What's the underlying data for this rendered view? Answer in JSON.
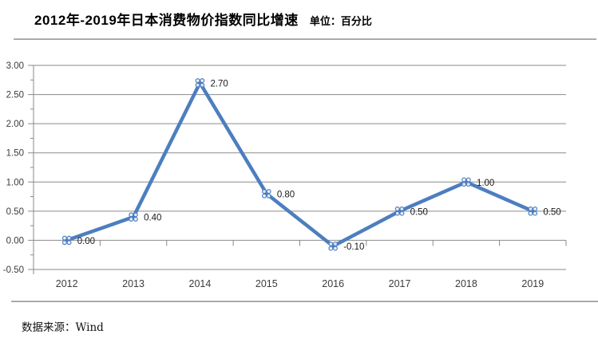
{
  "header": {
    "title": "2012年-2019年日本消费物价指数同比增速",
    "unit_label": "单位：百分比"
  },
  "footer": {
    "source": "数据来源：Wind"
  },
  "chart_data": {
    "type": "line",
    "title": "2012年-2019年日本消费物价指数同比增速",
    "unit": "百分比",
    "categories": [
      "2012",
      "2013",
      "2014",
      "2015",
      "2016",
      "2017",
      "2018",
      "2019"
    ],
    "values": [
      0.0,
      0.4,
      2.7,
      0.8,
      -0.1,
      0.5,
      1.0,
      0.5
    ],
    "data_labels": [
      "0.00",
      "0.40",
      "2.70",
      "0.80",
      "-0.10",
      "0.50",
      "1.00",
      "0.50"
    ],
    "ylim": [
      -0.5,
      3.0
    ],
    "yticks": [
      3.0,
      2.5,
      2.0,
      1.5,
      1.0,
      0.5,
      0.0,
      -0.5
    ],
    "ytick_labels": [
      "3.00",
      "2.50",
      "2.00",
      "1.50",
      "1.00",
      "0.50",
      "0.00",
      "-0.50"
    ],
    "grid": true,
    "legend": "none",
    "xlabel": "",
    "ylabel": "",
    "colors": {
      "line": "#4d7ebf",
      "gridline": "#8a8a8a",
      "axis": "#8a8a8a",
      "tick_label": "#3c3c3c",
      "data_label": "#1a1a1a"
    }
  }
}
